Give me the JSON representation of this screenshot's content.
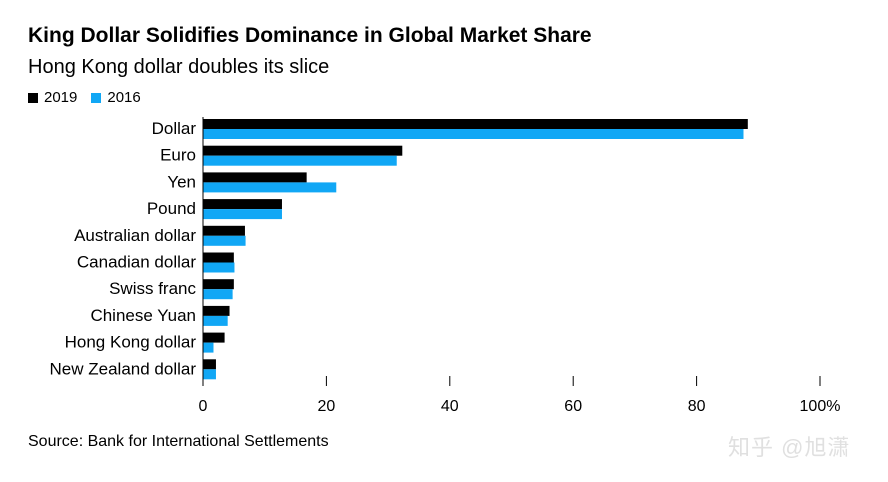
{
  "title": "King Dollar Solidifies Dominance in Global Market Share",
  "subtitle": "Hong Kong dollar doubles its slice",
  "source": "Source: Bank for International Settlements",
  "watermark": "知乎 @旭潇",
  "colors": {
    "2019": "#000000",
    "2016": "#11a7f5",
    "axis": "#000000",
    "grid": "#cccccc"
  },
  "chart_data": {
    "type": "bar",
    "orientation": "horizontal",
    "categories": [
      "Dollar",
      "Euro",
      "Yen",
      "Pound",
      "Australian dollar",
      "Canadian dollar",
      "Swiss franc",
      "Chinese Yuan",
      "Hong Kong dollar",
      "New Zealand dollar"
    ],
    "series": [
      {
        "name": "2019",
        "values": [
          88.3,
          32.3,
          16.8,
          12.8,
          6.8,
          5.0,
          5.0,
          4.3,
          3.5,
          2.1
        ]
      },
      {
        "name": "2016",
        "values": [
          87.6,
          31.4,
          21.6,
          12.8,
          6.9,
          5.1,
          4.8,
          4.0,
          1.7,
          2.1
        ]
      }
    ],
    "xlim": [
      0,
      100
    ],
    "xticks": [
      0,
      20,
      40,
      60,
      80,
      100
    ],
    "xtick_labels": [
      "0",
      "20",
      "40",
      "60",
      "80",
      "100%"
    ],
    "legend": "top-left"
  }
}
